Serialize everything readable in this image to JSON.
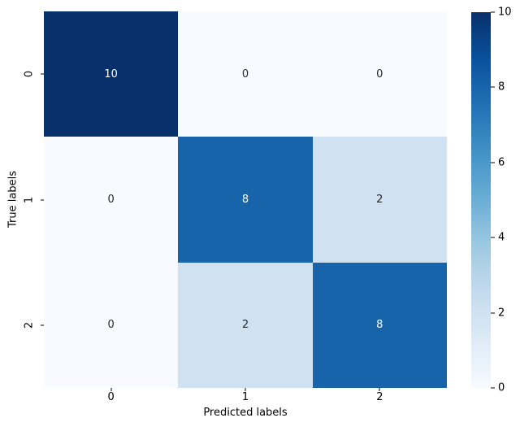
{
  "figure": {
    "background": "#ffffff"
  },
  "chart_data": {
    "type": "heatmap",
    "title": "",
    "xlabel": "Predicted labels",
    "ylabel": "True labels",
    "x_categories": [
      "0",
      "1",
      "2"
    ],
    "y_categories": [
      "0",
      "1",
      "2"
    ],
    "matrix": [
      [
        10,
        0,
        0
      ],
      [
        0,
        8,
        2
      ],
      [
        0,
        2,
        8
      ]
    ],
    "annotated": true,
    "vmin": 0,
    "vmax": 10,
    "colormap": "Blues",
    "colorbar_ticks": [
      0,
      2,
      4,
      6,
      8,
      10
    ],
    "colorbar_position": "right",
    "grid": false
  },
  "colors": {
    "value_colors": {
      "0": "#f7fbff",
      "2": "#d0e1f2",
      "8": "#1764ab",
      "10": "#08306b"
    },
    "annotation_light": "#ffffff",
    "annotation_dark": "#262626",
    "tick_color": "#000000",
    "colorbar_stops": [
      "#f7fbff",
      "#deebf7",
      "#c6dbef",
      "#9ecae1",
      "#6baed6",
      "#4292c6",
      "#2171b5",
      "#08519c",
      "#08306b"
    ]
  }
}
